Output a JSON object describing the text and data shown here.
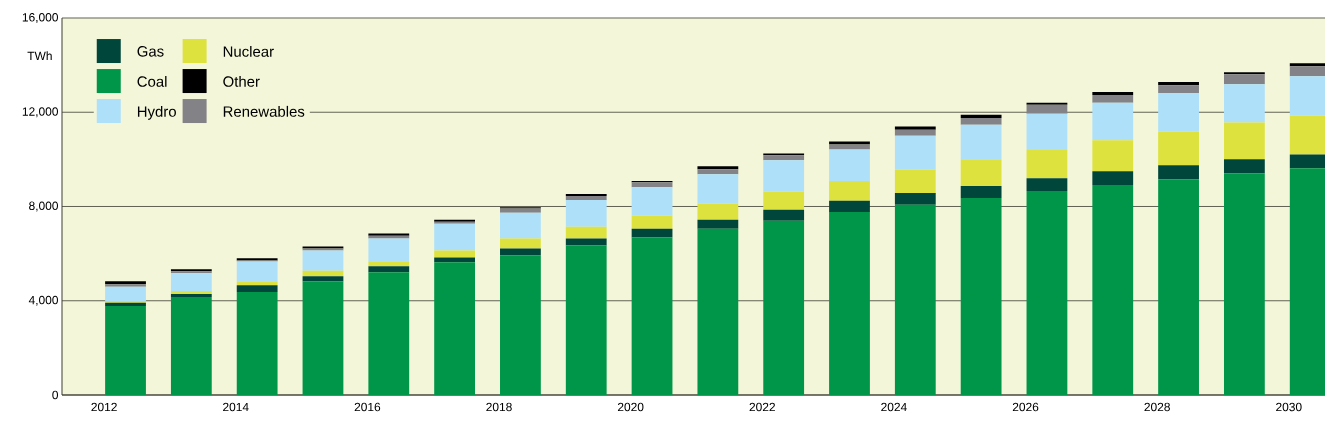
{
  "chart_data": {
    "type": "bar",
    "stacked": true,
    "ylabel": "TWh",
    "categories": [
      "2012",
      null,
      "2014",
      null,
      "2016",
      null,
      "2018",
      null,
      "2020",
      null,
      "2022",
      null,
      "2024",
      null,
      "2026",
      null,
      "2028",
      null,
      "2030"
    ],
    "series": [
      {
        "name": "Coal",
        "color": "#00964a",
        "values": [
          3780,
          4160,
          4370,
          4830,
          5210,
          5630,
          5920,
          6340,
          6680,
          7060,
          7390,
          7770,
          8070,
          8360,
          8660,
          8910,
          9160,
          9410,
          9620
        ]
      },
      {
        "name": "Gas",
        "color": "#00463a",
        "values": [
          130,
          130,
          290,
          210,
          250,
          210,
          300,
          300,
          380,
          380,
          470,
          470,
          500,
          510,
          540,
          590,
          590,
          590,
          590
        ]
      },
      {
        "name": "Nuclear",
        "color": "#dde23f",
        "values": [
          80,
          120,
          170,
          230,
          220,
          290,
          420,
          500,
          560,
          690,
          770,
          840,
          1000,
          1130,
          1200,
          1310,
          1430,
          1570,
          1640
        ]
      },
      {
        "name": "Hydro",
        "color": "#aee0fa",
        "values": [
          600,
          760,
          840,
          860,
          960,
          1140,
          1090,
          1140,
          1200,
          1240,
          1330,
          1340,
          1430,
          1470,
          1540,
          1590,
          1640,
          1620,
          1680
        ]
      },
      {
        "name": "Renewables",
        "color": "#838387",
        "values": [
          110,
          80,
          40,
          90,
          120,
          80,
          180,
          170,
          210,
          210,
          210,
          210,
          260,
          290,
          380,
          330,
          330,
          420,
          420
        ]
      },
      {
        "name": "Other",
        "color": "#000000",
        "values": [
          130,
          90,
          90,
          80,
          90,
          90,
          60,
          80,
          50,
          130,
          80,
          130,
          130,
          130,
          80,
          130,
          130,
          90,
          130
        ]
      }
    ],
    "ylim": [
      0,
      16000
    ],
    "yticks": [
      0,
      {
        "value": 4000,
        "label": "4,000"
      },
      {
        "value": 8000,
        "label": "8,000"
      },
      {
        "value": 12000,
        "label": "12,000"
      },
      {
        "value": 16000,
        "label": "16,000"
      }
    ],
    "grid": "y",
    "legend": "top left"
  }
}
